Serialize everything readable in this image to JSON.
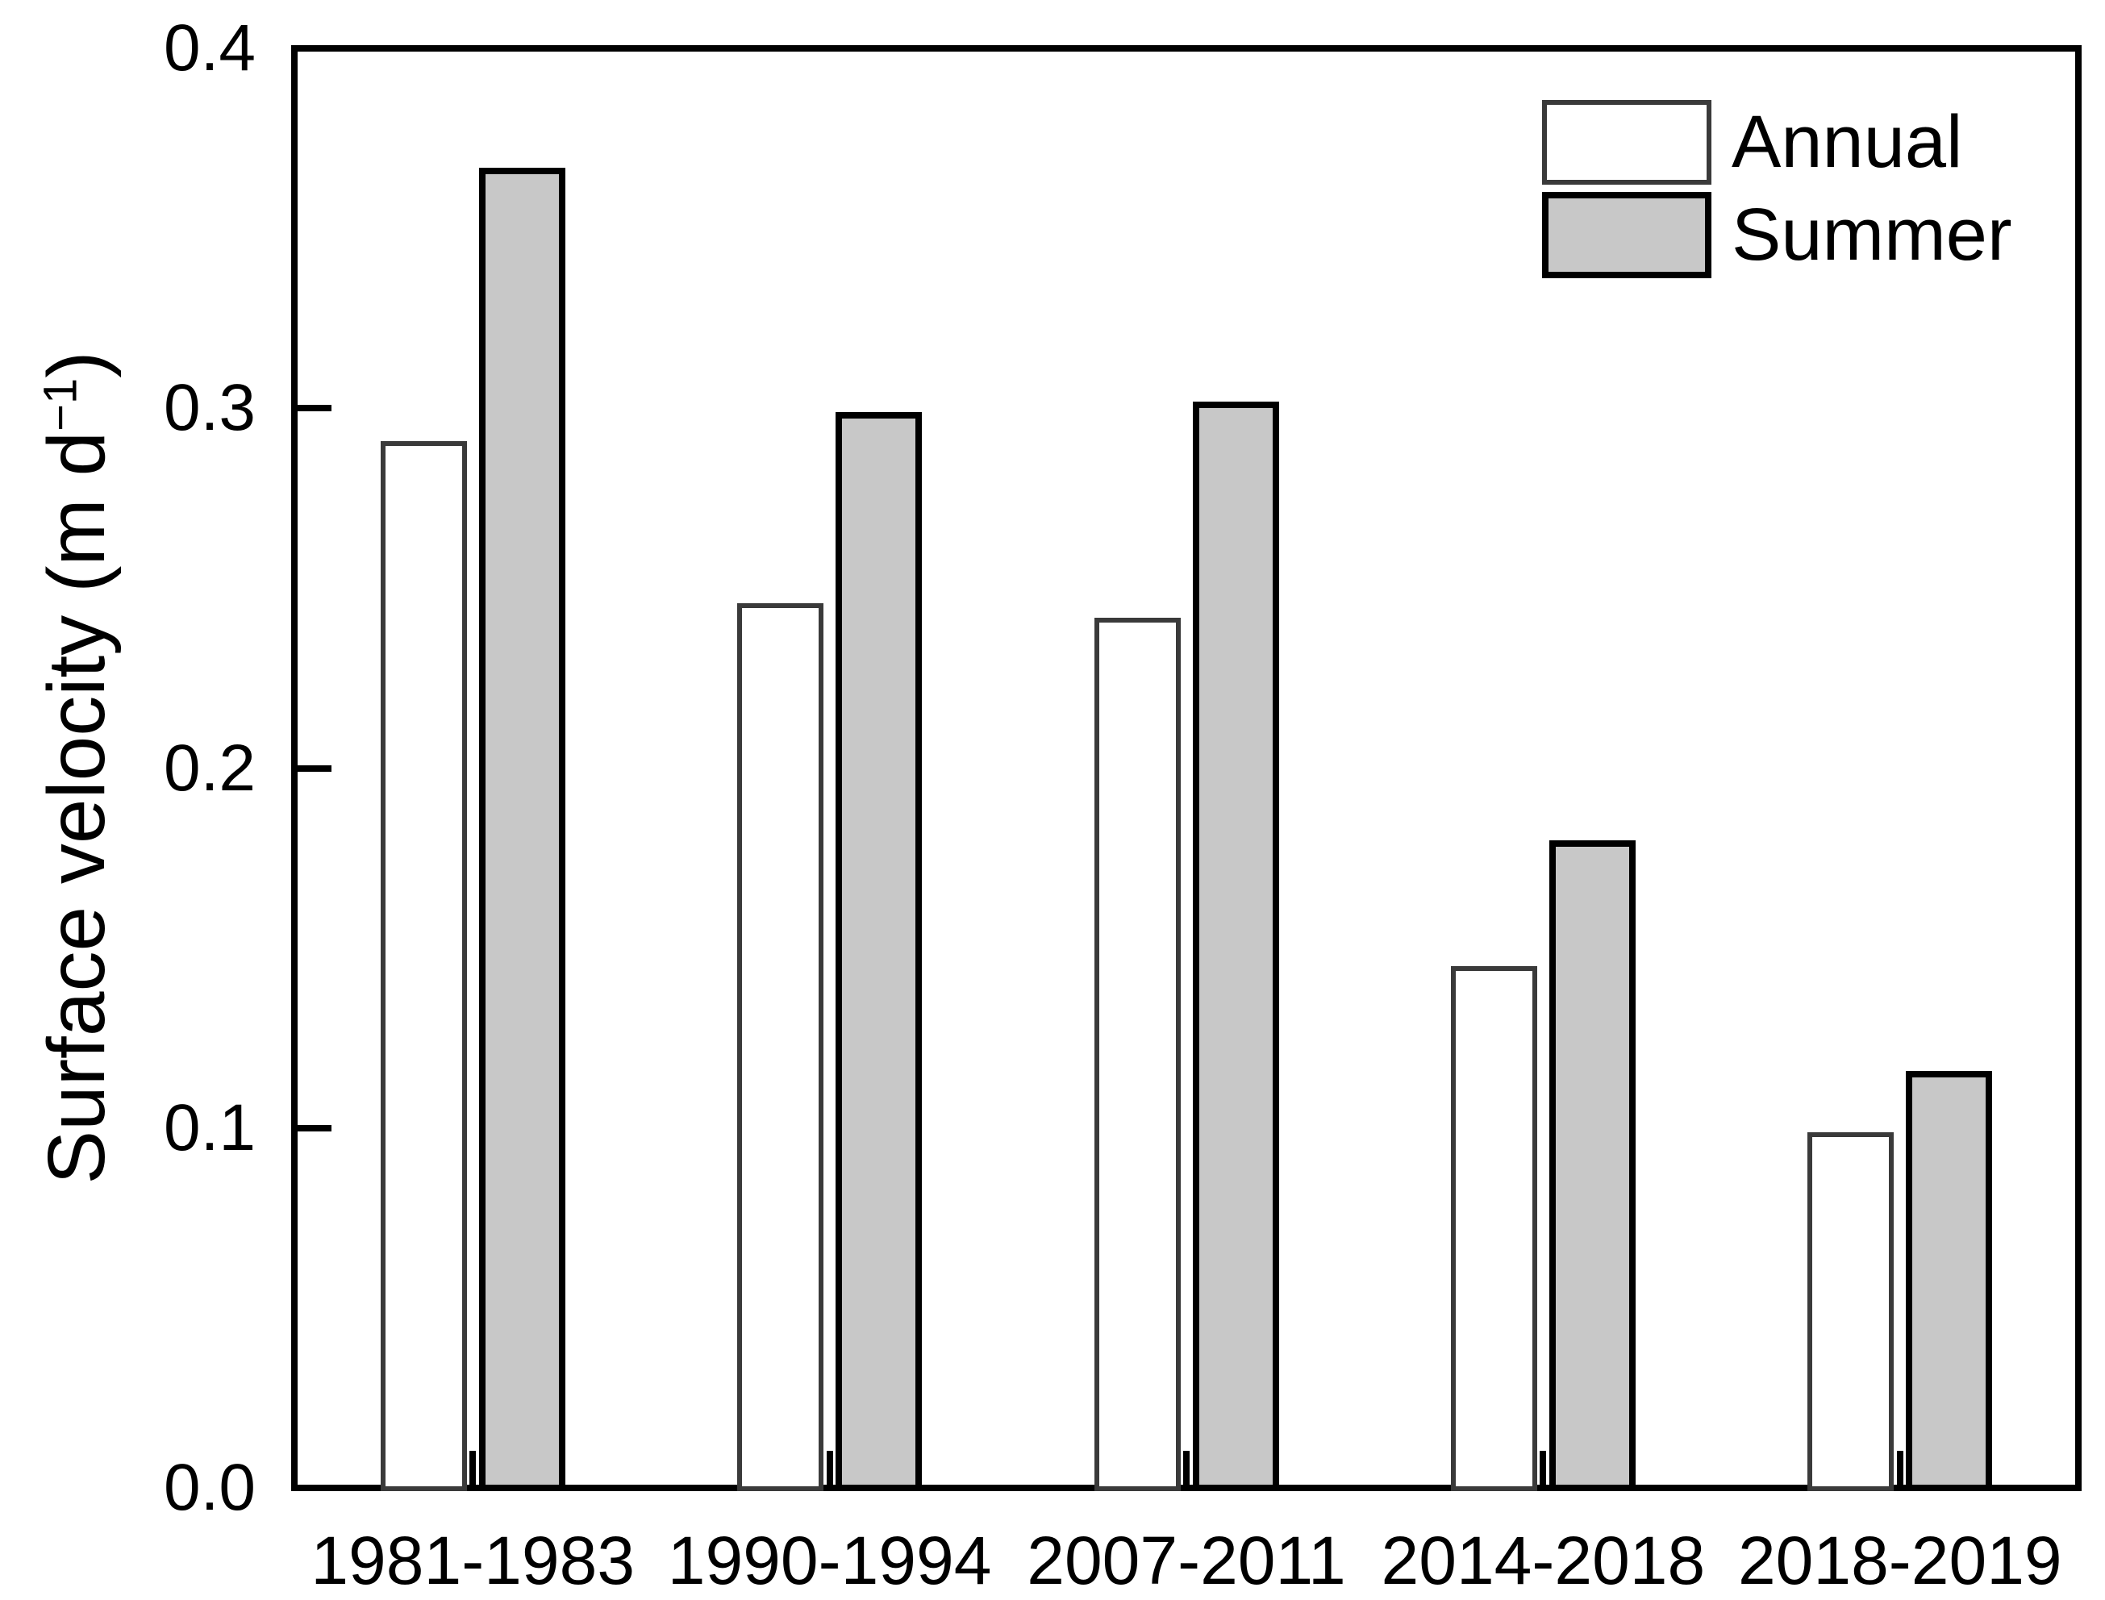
{
  "chart_data": {
    "type": "bar",
    "title": "",
    "categories": [
      "1981-1983",
      "1990-1994",
      "2007-2011",
      "2014-2018",
      "2018-2019"
    ],
    "series": [
      {
        "name": "Annual",
        "values": [
          0.29,
          0.245,
          0.241,
          0.144,
          0.098
        ],
        "fill_color": "#ffffff",
        "border_color": "#3a3a3a"
      },
      {
        "name": "Summer",
        "values": [
          0.366,
          0.298,
          0.301,
          0.179,
          0.115
        ],
        "fill_color": "#c8c8c8",
        "border_color": "#000000"
      }
    ],
    "xlabel": "",
    "ylabel": "Surface velocity (m d⁻¹)",
    "ylabel_parts": {
      "prefix": "Surface velocity (m d",
      "superscript": "−1",
      "suffix": ")"
    },
    "ylim": [
      0.0,
      0.4
    ],
    "yticks": [
      0.0,
      0.1,
      0.2,
      0.3,
      0.4
    ],
    "ytick_labels": [
      "0.0",
      "0.1",
      "0.2",
      "0.3",
      "0.4"
    ],
    "grid": false,
    "legend_position": "top-right-inside",
    "axis_color": "#000000",
    "background_color": "#ffffff"
  }
}
